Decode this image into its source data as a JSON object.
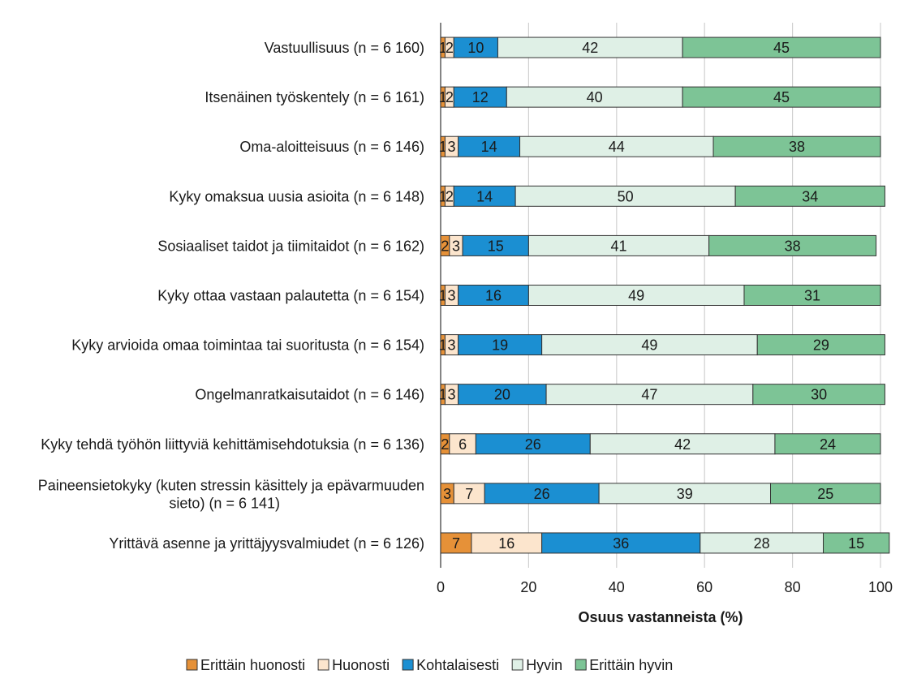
{
  "colors": {
    "Erittäin huonosti": "#E69138",
    "Huonosti": "#FCE5CD",
    "Kohtalaisesti": "#1B8FD2",
    "Hyvin": "#DFF0E6",
    "Erittäin hyvin": "#7DC496",
    "bar_stroke": "#333333",
    "grid": "#d0d0d0"
  },
  "chart_data": {
    "type": "bar",
    "orientation": "horizontal",
    "stacked": true,
    "title": "",
    "xlabel": "Osuus vastanneista (%)",
    "ylabel": "",
    "xlim": [
      0,
      100
    ],
    "xticks": [
      0,
      20,
      40,
      60,
      80,
      100
    ],
    "grid": true,
    "legend_position": "bottom",
    "categories": [
      [
        "Vastuullisuus (n = 6 160)"
      ],
      [
        "Itsenäinen työskentely (n = 6 161)"
      ],
      [
        "Oma-aloitteisuus (n = 6 146)"
      ],
      [
        "Kyky omaksua uusia asioita (n = 6 148)"
      ],
      [
        "Sosiaaliset taidot ja tiimitaidot (n = 6 162)"
      ],
      [
        "Kyky ottaa vastaan palautetta (n = 6 154)"
      ],
      [
        "Kyky arvioida omaa toimintaa tai suoritusta (n = 6 154)"
      ],
      [
        "Ongelmanratkaisutaidot (n = 6 146)"
      ],
      [
        "Kyky tehdä työhön liittyviä kehittämisehdotuksia (n = 6 136)"
      ],
      [
        "Paineensietokyky (kuten stressin käsittely ja epävarmuuden",
        "sieto) (n = 6 141)"
      ],
      [
        "Yrittävä asenne ja yrittäjyysvalmiudet (n = 6 126)"
      ]
    ],
    "series": [
      {
        "name": "Erittäin huonosti",
        "values": [
          1,
          1,
          1,
          1,
          2,
          1,
          1,
          1,
          2,
          3,
          7
        ]
      },
      {
        "name": "Huonosti",
        "values": [
          2,
          2,
          3,
          2,
          3,
          3,
          3,
          3,
          6,
          7,
          16
        ]
      },
      {
        "name": "Kohtalaisesti",
        "values": [
          10,
          12,
          14,
          14,
          15,
          16,
          19,
          20,
          26,
          26,
          36
        ]
      },
      {
        "name": "Hyvin",
        "values": [
          42,
          40,
          44,
          50,
          41,
          49,
          49,
          47,
          42,
          39,
          28
        ]
      },
      {
        "name": "Erittäin hyvin",
        "values": [
          45,
          45,
          38,
          34,
          38,
          31,
          29,
          30,
          24,
          25,
          15
        ]
      }
    ]
  }
}
